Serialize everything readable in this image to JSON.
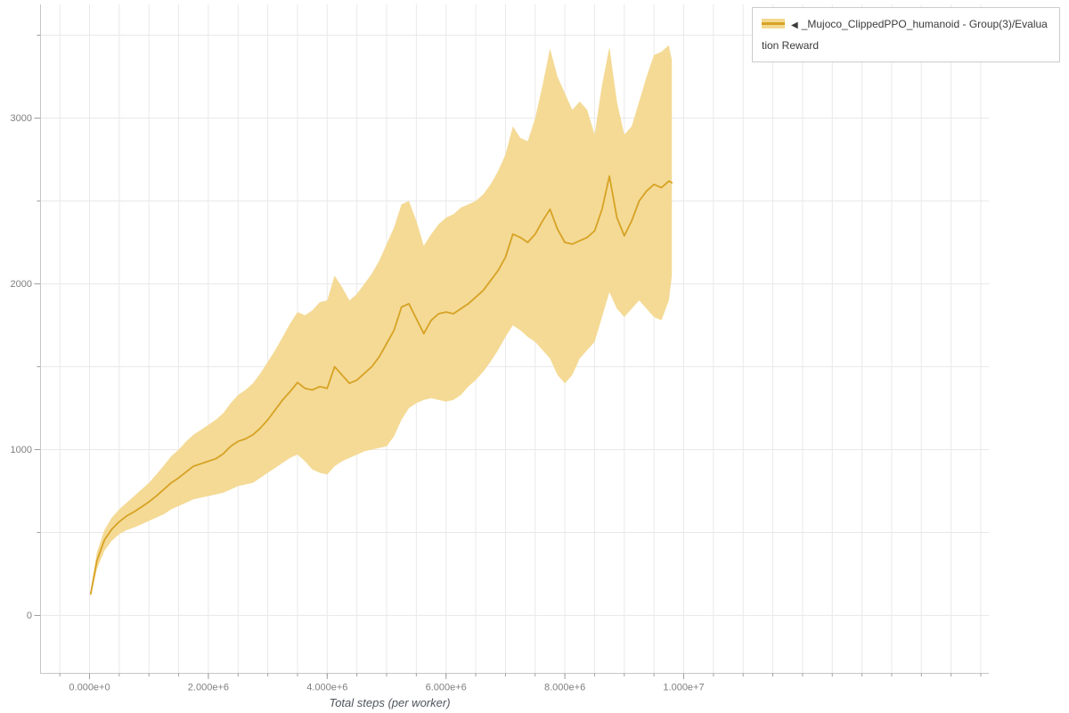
{
  "page": {
    "background": "#ffffff"
  },
  "colors": {
    "line": "#d7a224",
    "band": "#f3d88f",
    "grid": "#e9e9e9",
    "axis": "#c6c6c6",
    "tick": "#a0a0a0",
    "tick_text": "#7f7f7f"
  },
  "legend": {
    "marker": "◀",
    "label": "_Mujoco_ClippedPPO_humanoid - Group(3)/Evaluation Reward"
  },
  "chart_data": {
    "type": "line",
    "title": "",
    "xlabel": "Total steps (per worker)",
    "ylabel": "",
    "legend_position": "top-right",
    "grid": true,
    "band": true,
    "x_units": "steps (millions)",
    "x_ticks": [
      {
        "m": 0,
        "label": "0.000e+0"
      },
      {
        "m": 2,
        "label": "2.000e+6"
      },
      {
        "m": 4,
        "label": "4.000e+6"
      },
      {
        "m": 6,
        "label": "6.000e+6"
      },
      {
        "m": 8,
        "label": "8.000e+6"
      },
      {
        "m": 10,
        "label": "1.000e+7"
      }
    ],
    "y_ticks": [
      {
        "v": 0,
        "label": "0"
      },
      {
        "v": 1000,
        "label": "1000"
      },
      {
        "v": 2000,
        "label": "2000"
      },
      {
        "v": 3000,
        "label": "3000"
      }
    ],
    "x_minor_step_millions": 0.5,
    "x_grid_range_millions": [
      -0.5,
      15
    ],
    "y_minor_step": 500,
    "y_grid_max": 3500,
    "ylim": [
      -350,
      3685
    ],
    "series": [
      {
        "name": "Mujoco_ClippedPPO_humanoid - Group(3)/Evaluation Reward",
        "x_millions": [
          0.02,
          0.125,
          0.25,
          0.375,
          0.5,
          0.625,
          0.75,
          0.875,
          1.0,
          1.125,
          1.25,
          1.375,
          1.5,
          1.625,
          1.75,
          1.875,
          2.0,
          2.125,
          2.25,
          2.375,
          2.5,
          2.625,
          2.75,
          2.875,
          3.0,
          3.125,
          3.25,
          3.375,
          3.5,
          3.625,
          3.75,
          3.875,
          4.0,
          4.125,
          4.25,
          4.375,
          4.5,
          4.625,
          4.75,
          4.875,
          5.0,
          5.125,
          5.25,
          5.375,
          5.5,
          5.625,
          5.75,
          5.875,
          6.0,
          6.125,
          6.25,
          6.375,
          6.5,
          6.625,
          6.75,
          6.875,
          7.0,
          7.125,
          7.25,
          7.375,
          7.5,
          7.625,
          7.75,
          7.875,
          8.0,
          8.125,
          8.25,
          8.375,
          8.5,
          8.625,
          8.75,
          8.875,
          9.0,
          9.125,
          9.25,
          9.375,
          9.5,
          9.625,
          9.75,
          9.8
        ],
        "mean": [
          130,
          330,
          455,
          520,
          565,
          600,
          625,
          655,
          685,
          720,
          760,
          800,
          830,
          865,
          900,
          915,
          930,
          945,
          975,
          1020,
          1050,
          1065,
          1090,
          1130,
          1180,
          1240,
          1300,
          1350,
          1405,
          1370,
          1360,
          1380,
          1370,
          1500,
          1450,
          1400,
          1420,
          1460,
          1500,
          1560,
          1640,
          1720,
          1860,
          1880,
          1790,
          1700,
          1780,
          1820,
          1830,
          1820,
          1850,
          1880,
          1920,
          1960,
          2020,
          2080,
          2160,
          2300,
          2280,
          2250,
          2300,
          2380,
          2450,
          2330,
          2250,
          2240,
          2260,
          2280,
          2320,
          2450,
          2650,
          2400,
          2290,
          2380,
          2500,
          2560,
          2600,
          2580,
          2620,
          2610
        ],
        "lower": [
          110,
          280,
          390,
          450,
          490,
          515,
          530,
          550,
          570,
          590,
          610,
          640,
          660,
          680,
          700,
          710,
          720,
          730,
          740,
          760,
          780,
          790,
          800,
          830,
          860,
          890,
          920,
          950,
          970,
          930,
          880,
          860,
          850,
          900,
          930,
          950,
          970,
          990,
          1000,
          1010,
          1020,
          1080,
          1180,
          1250,
          1280,
          1300,
          1310,
          1300,
          1290,
          1300,
          1330,
          1380,
          1420,
          1470,
          1530,
          1600,
          1680,
          1750,
          1720,
          1680,
          1650,
          1600,
          1550,
          1450,
          1400,
          1450,
          1550,
          1600,
          1650,
          1800,
          1950,
          1850,
          1800,
          1850,
          1900,
          1850,
          1800,
          1780,
          1900,
          2050
        ],
        "upper": [
          150,
          380,
          515,
          590,
          640,
          680,
          720,
          760,
          800,
          850,
          905,
          960,
          1000,
          1050,
          1090,
          1120,
          1150,
          1180,
          1220,
          1280,
          1330,
          1360,
          1400,
          1460,
          1530,
          1600,
          1680,
          1760,
          1830,
          1810,
          1840,
          1890,
          1900,
          2050,
          1980,
          1900,
          1940,
          2000,
          2060,
          2140,
          2240,
          2340,
          2480,
          2500,
          2380,
          2230,
          2300,
          2360,
          2400,
          2420,
          2460,
          2480,
          2500,
          2540,
          2600,
          2680,
          2780,
          2950,
          2880,
          2860,
          3000,
          3200,
          3420,
          3250,
          3150,
          3050,
          3100,
          3050,
          2900,
          3200,
          3430,
          3100,
          2900,
          2950,
          3100,
          3250,
          3380,
          3400,
          3440,
          3350
        ]
      }
    ]
  }
}
